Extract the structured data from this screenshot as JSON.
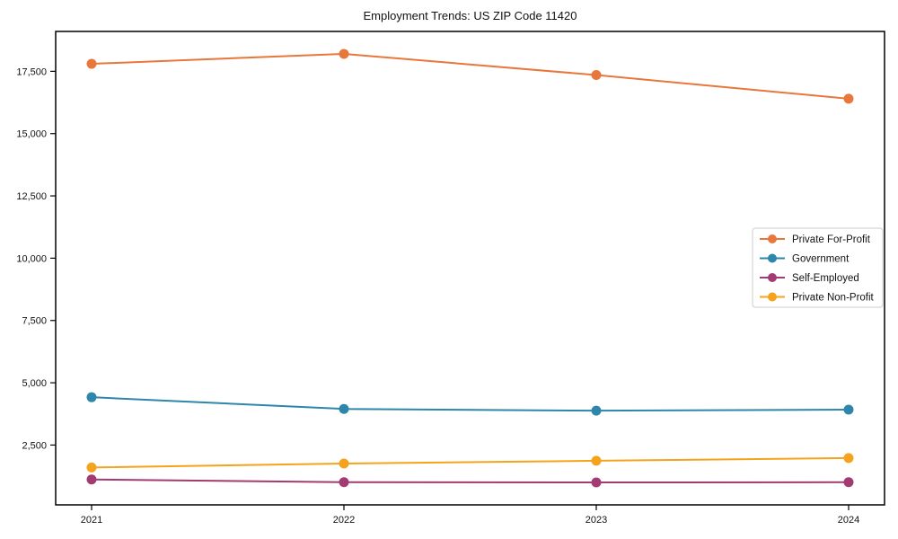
{
  "title": "Employment Trends: US ZIP Code 11420",
  "colors": {
    "background": "#ffffff",
    "axis": "#000000",
    "text": "#111111",
    "legend_border": "#cccccc",
    "legend_background": "#ffffff"
  },
  "chart_data": {
    "type": "line",
    "title": "Employment Trends: US ZIP Code 11420",
    "x": [
      "2021",
      "2022",
      "2023",
      "2024"
    ],
    "series": [
      {
        "name": "Private For-Profit",
        "color": "#E8773C",
        "values": [
          17800,
          18200,
          17350,
          16400
        ]
      },
      {
        "name": "Government",
        "color": "#2E86AB",
        "values": [
          4420,
          3950,
          3880,
          3920
        ]
      },
      {
        "name": "Self-Employed",
        "color": "#A23B72",
        "values": [
          1120,
          1010,
          1000,
          1010
        ]
      },
      {
        "name": "Private Non-Profit",
        "color": "#F5A31C",
        "values": [
          1600,
          1760,
          1870,
          1980
        ]
      }
    ],
    "yticks": [
      2500,
      5000,
      7500,
      10000,
      12500,
      15000,
      17500
    ],
    "ytick_labels": [
      "2,500",
      "5,000",
      "7,500",
      "10,000",
      "12,500",
      "15,000",
      "17,500"
    ],
    "ylim": [
      100,
      19100
    ],
    "xlabel": "",
    "ylabel": "",
    "grid": false,
    "marker": "circle",
    "legend": {
      "position": "right-middle",
      "entries": [
        "Private For-Profit",
        "Government",
        "Self-Employed",
        "Private Non-Profit"
      ]
    }
  }
}
